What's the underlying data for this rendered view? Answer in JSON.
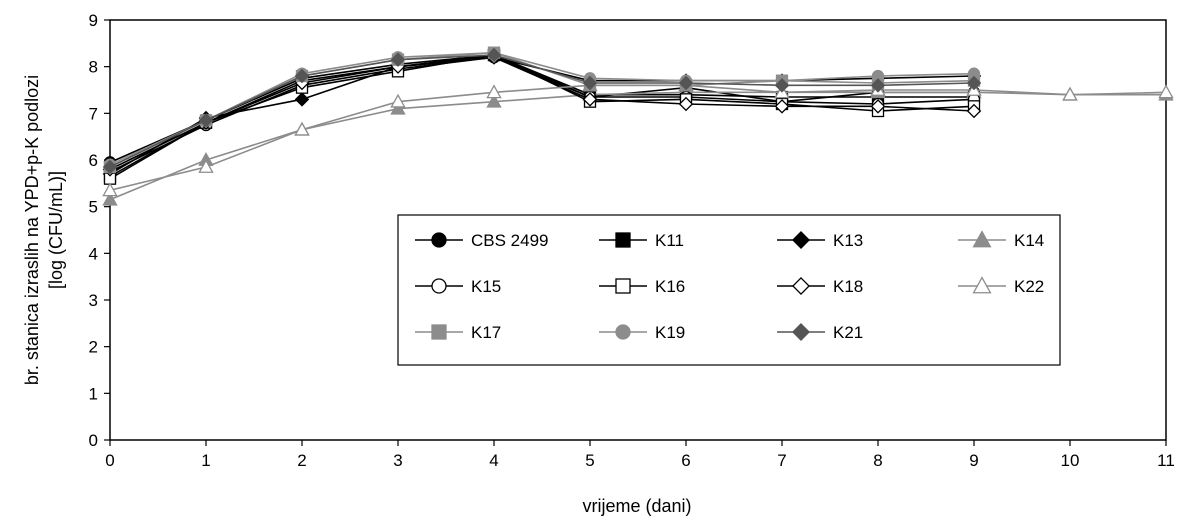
{
  "chart_data": {
    "type": "line",
    "title": "",
    "xlabel": "vrijeme (dani)",
    "ylabel_line1": "br. stanica izraslih na YPD+p-K podlozi",
    "ylabel_line2": "[log (CFU/mL)]",
    "xlim": [
      0,
      11
    ],
    "ylim": [
      0,
      9
    ],
    "x_ticks": [
      0,
      1,
      2,
      3,
      4,
      5,
      6,
      7,
      8,
      9,
      10,
      11
    ],
    "y_ticks": [
      0,
      1,
      2,
      3,
      4,
      5,
      6,
      7,
      8,
      9
    ],
    "grid": false,
    "legend_position": "center-right",
    "series": [
      {
        "name": "CBS 2499",
        "color": "#000000",
        "marker": "circle",
        "filled": true,
        "x": [
          0,
          1,
          2,
          3,
          4,
          5,
          6,
          7,
          8,
          9
        ],
        "y": [
          5.95,
          6.85,
          7.75,
          8.05,
          8.25,
          7.35,
          7.55,
          7.25,
          7.45,
          7.45
        ]
      },
      {
        "name": "K11",
        "color": "#000000",
        "marker": "square",
        "filled": true,
        "x": [
          0,
          1,
          2,
          3,
          4,
          5,
          6,
          7,
          8,
          9
        ],
        "y": [
          5.65,
          6.8,
          7.7,
          8.0,
          8.25,
          7.4,
          7.4,
          7.35,
          7.35,
          7.35
        ]
      },
      {
        "name": "K13",
        "color": "#000000",
        "marker": "diamond",
        "filled": true,
        "x": [
          0,
          1,
          2,
          3,
          4,
          5,
          6,
          7,
          8,
          9
        ],
        "y": [
          5.7,
          6.9,
          7.3,
          8.0,
          8.2,
          7.7,
          7.7,
          7.7,
          7.75,
          7.8
        ]
      },
      {
        "name": "K14",
        "color": "#8c8c8c",
        "marker": "triangle",
        "filled": true,
        "x": [
          0,
          1,
          2,
          3,
          4,
          5,
          6,
          7,
          8,
          9,
          10,
          11
        ],
        "y": [
          5.15,
          6.0,
          6.65,
          7.1,
          7.25,
          7.4,
          7.45,
          7.45,
          7.45,
          7.45,
          7.4,
          7.4
        ]
      },
      {
        "name": "K15",
        "color": "#000000",
        "marker": "circle",
        "filled": false,
        "x": [
          0,
          1,
          2,
          3,
          4,
          5,
          6,
          7,
          8,
          9
        ],
        "y": [
          5.75,
          6.75,
          7.6,
          7.95,
          8.2,
          7.35,
          7.35,
          7.25,
          7.2,
          7.3
        ]
      },
      {
        "name": "K16",
        "color": "#000000",
        "marker": "square",
        "filled": false,
        "x": [
          0,
          1,
          2,
          3,
          4,
          5,
          6,
          7,
          8,
          9
        ],
        "y": [
          5.6,
          6.8,
          7.55,
          7.9,
          8.25,
          7.25,
          7.3,
          7.2,
          7.05,
          7.15
        ]
      },
      {
        "name": "K18",
        "color": "#000000",
        "marker": "diamond",
        "filled": false,
        "x": [
          0,
          1,
          2,
          3,
          4,
          5,
          6,
          7,
          8,
          9
        ],
        "y": [
          5.8,
          6.8,
          7.65,
          8.0,
          8.2,
          7.3,
          7.2,
          7.15,
          7.15,
          7.05
        ]
      },
      {
        "name": "K22",
        "color": "#8c8c8c",
        "marker": "triangle",
        "filled": false,
        "x": [
          0,
          1,
          2,
          3,
          4,
          5,
          6,
          7,
          8,
          9,
          10,
          11
        ],
        "y": [
          5.35,
          5.85,
          6.65,
          7.25,
          7.45,
          7.6,
          7.6,
          7.45,
          7.5,
          7.5,
          7.4,
          7.45
        ]
      },
      {
        "name": "K17",
        "color": "#8c8c8c",
        "marker": "square",
        "filled": true,
        "x": [
          0,
          1,
          2,
          3,
          4,
          5,
          6,
          7,
          8,
          9
        ],
        "y": [
          5.85,
          6.85,
          7.8,
          8.15,
          8.3,
          7.6,
          7.6,
          7.7,
          7.65,
          7.7
        ]
      },
      {
        "name": "K19",
        "color": "#8c8c8c",
        "marker": "circle",
        "filled": true,
        "x": [
          0,
          1,
          2,
          3,
          4,
          5,
          6,
          7,
          8,
          9
        ],
        "y": [
          5.9,
          6.85,
          7.85,
          8.2,
          8.3,
          7.75,
          7.7,
          7.7,
          7.8,
          7.85
        ]
      },
      {
        "name": "K21",
        "color": "#555555",
        "marker": "diamond",
        "filled": true,
        "x": [
          0,
          1,
          2,
          3,
          4,
          5,
          6,
          7,
          8,
          9
        ],
        "y": [
          5.85,
          6.85,
          7.8,
          8.15,
          8.25,
          7.65,
          7.65,
          7.6,
          7.6,
          7.65
        ]
      }
    ]
  }
}
